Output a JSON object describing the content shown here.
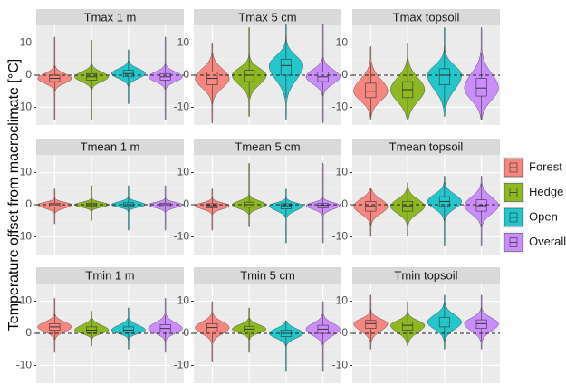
{
  "chart_data": {
    "type": "violin",
    "y_label": "Temperature offset from macroclimate [°C]",
    "ylim": [
      -15.5,
      15.5
    ],
    "yticks": [
      -10,
      0,
      10
    ],
    "hline": 0,
    "grid": true,
    "legend": "right",
    "series": [
      {
        "name": "Forest",
        "color": "#F8766D"
      },
      {
        "name": "Hedge",
        "color": "#7CAE00"
      },
      {
        "name": "Open",
        "color": "#00BFC4"
      },
      {
        "name": "Overall",
        "color": "#C77CFF"
      }
    ],
    "panels": [
      {
        "title": "Tmax 1 m",
        "groups": [
          {
            "min": -14,
            "whisker_low": -5,
            "q1": -2,
            "median": -1,
            "q3": 0,
            "whisker_high": 3,
            "max": 12
          },
          {
            "min": -14,
            "whisker_low": -4.5,
            "q1": -1.5,
            "median": -0.5,
            "q3": 0.5,
            "whisker_high": 3.5,
            "max": 11
          },
          {
            "min": -9,
            "whisker_low": -3.5,
            "q1": -0.5,
            "median": 0.5,
            "q3": 1.5,
            "whisker_high": 4.5,
            "max": 8
          },
          {
            "min": -14,
            "whisker_low": -4.5,
            "q1": -1.5,
            "median": -0.5,
            "q3": 0.5,
            "whisker_high": 3.5,
            "max": 12
          }
        ]
      },
      {
        "title": "Tmax 5 cm",
        "groups": [
          {
            "min": -15,
            "whisker_low": -9,
            "q1": -3,
            "median": -1,
            "q3": 1,
            "whisker_high": 7,
            "max": 10
          },
          {
            "min": -13,
            "whisker_low": -7,
            "q1": -2,
            "median": 0,
            "q3": 1.5,
            "whisker_high": 6.5,
            "max": 15
          },
          {
            "min": -14,
            "whisker_low": -7,
            "q1": 0,
            "median": 3,
            "q3": 5,
            "whisker_high": 12,
            "max": 16
          },
          {
            "min": -15,
            "whisker_low": -6.5,
            "q1": -2,
            "median": -0.5,
            "q3": 1,
            "whisker_high": 5.5,
            "max": 16
          }
        ]
      },
      {
        "title": "Tmax topsoil",
        "groups": [
          {
            "min": -14,
            "whisker_low": -13,
            "q1": -7,
            "median": -5,
            "q3": -2.5,
            "whisker_high": 4,
            "max": 9
          },
          {
            "min": -14,
            "whisker_low": -13,
            "q1": -7,
            "median": -4.5,
            "q3": -2,
            "whisker_high": 5,
            "max": 10
          },
          {
            "min": -13,
            "whisker_low": -10,
            "q1": -3,
            "median": 0,
            "q3": 2,
            "whisker_high": 9,
            "max": 15
          },
          {
            "min": -14,
            "whisker_low": -14,
            "q1": -6.5,
            "median": -4,
            "q3": -1,
            "whisker_high": 7,
            "max": 15
          }
        ]
      },
      {
        "title": "Tmean 1 m",
        "groups": [
          {
            "min": -6,
            "whisker_low": -2.5,
            "q1": -0.7,
            "median": 0,
            "q3": 0.5,
            "whisker_high": 2.3,
            "max": 5
          },
          {
            "min": -5,
            "whisker_low": -2,
            "q1": -0.5,
            "median": 0,
            "q3": 0.5,
            "whisker_high": 2,
            "max": 6
          },
          {
            "min": -8,
            "whisker_low": -2.2,
            "q1": -0.5,
            "median": 0,
            "q3": 0.6,
            "whisker_high": 2.3,
            "max": 6
          },
          {
            "min": -8,
            "whisker_low": -2.3,
            "q1": -0.6,
            "median": 0,
            "q3": 0.5,
            "whisker_high": 2.2,
            "max": 6
          }
        ]
      },
      {
        "title": "Tmean 5 cm",
        "groups": [
          {
            "min": -8,
            "whisker_low": -3,
            "q1": -1,
            "median": -0.3,
            "q3": 0.3,
            "whisker_high": 2.2,
            "max": 5
          },
          {
            "min": -7,
            "whisker_low": -3,
            "q1": -0.8,
            "median": 0,
            "q3": 0.8,
            "whisker_high": 3,
            "max": 13
          },
          {
            "min": -12,
            "whisker_low": -3.7,
            "q1": -1.3,
            "median": -0.3,
            "q3": 0.3,
            "whisker_high": 2.7,
            "max": 5
          },
          {
            "min": -12,
            "whisker_low": -3,
            "q1": -1,
            "median": -0.2,
            "q3": 0.4,
            "whisker_high": 2.5,
            "max": 13
          }
        ]
      },
      {
        "title": "Tmean topsoil",
        "groups": [
          {
            "min": -10,
            "whisker_low": -6.5,
            "q1": -2,
            "median": -0.5,
            "q3": 1,
            "whisker_high": 5,
            "max": 5
          },
          {
            "min": -10,
            "whisker_low": -6.5,
            "q1": -2,
            "median": -0.5,
            "q3": 1,
            "whisker_high": 5.5,
            "max": 7
          },
          {
            "min": -13,
            "whisker_low": -5,
            "q1": -0.5,
            "median": 1,
            "q3": 2.5,
            "whisker_high": 7,
            "max": 9
          },
          {
            "min": -13,
            "whisker_low": -7,
            "q1": -2,
            "median": -0.3,
            "q3": 1.5,
            "whisker_high": 6.5,
            "max": 9
          }
        ]
      },
      {
        "title": "Tmin 1 m",
        "groups": [
          {
            "min": -6,
            "whisker_low": -2,
            "q1": 1,
            "median": 2,
            "q3": 3,
            "whisker_high": 6,
            "max": 11
          },
          {
            "min": -4,
            "whisker_low": -2.2,
            "q1": 0.3,
            "median": 1,
            "q3": 2,
            "whisker_high": 4.5,
            "max": 7
          },
          {
            "min": -5,
            "whisker_low": -2.2,
            "q1": 0.3,
            "median": 1,
            "q3": 2,
            "whisker_high": 4.5,
            "max": 8
          },
          {
            "min": -6,
            "whisker_low": -2.5,
            "q1": 0.5,
            "median": 1.5,
            "q3": 2.7,
            "whisker_high": 5.7,
            "max": 11
          }
        ]
      },
      {
        "title": "Tmin 5 cm",
        "groups": [
          {
            "min": -9,
            "whisker_low": -3,
            "q1": 0.5,
            "median": 1.8,
            "q3": 3,
            "whisker_high": 6.5,
            "max": 10
          },
          {
            "min": -6,
            "whisker_low": -2,
            "q1": 0.5,
            "median": 1.3,
            "q3": 2.2,
            "whisker_high": 4.7,
            "max": 8
          },
          {
            "min": -12,
            "whisker_low": -4,
            "q1": -1,
            "median": 0,
            "q3": 1,
            "whisker_high": 4,
            "max": 4
          },
          {
            "min": -12,
            "whisker_low": -3.5,
            "q1": 0,
            "median": 1.3,
            "q3": 2.5,
            "whisker_high": 6,
            "max": 10
          }
        ]
      },
      {
        "title": "Tmin topsoil",
        "groups": [
          {
            "min": -5,
            "whisker_low": -2.5,
            "q1": 1.5,
            "median": 3,
            "q3": 4,
            "whisker_high": 7.5,
            "max": 12
          },
          {
            "min": -4,
            "whisker_low": -2.5,
            "q1": 1,
            "median": 2.5,
            "q3": 3.5,
            "whisker_high": 7,
            "max": 10
          },
          {
            "min": -5,
            "whisker_low": -2.5,
            "q1": 2,
            "median": 3.5,
            "q3": 5,
            "whisker_high": 9.5,
            "max": 12
          },
          {
            "min": -5,
            "whisker_low": -2.5,
            "q1": 1.5,
            "median": 3,
            "q3": 4.2,
            "whisker_high": 8,
            "max": 12
          }
        ]
      }
    ]
  }
}
